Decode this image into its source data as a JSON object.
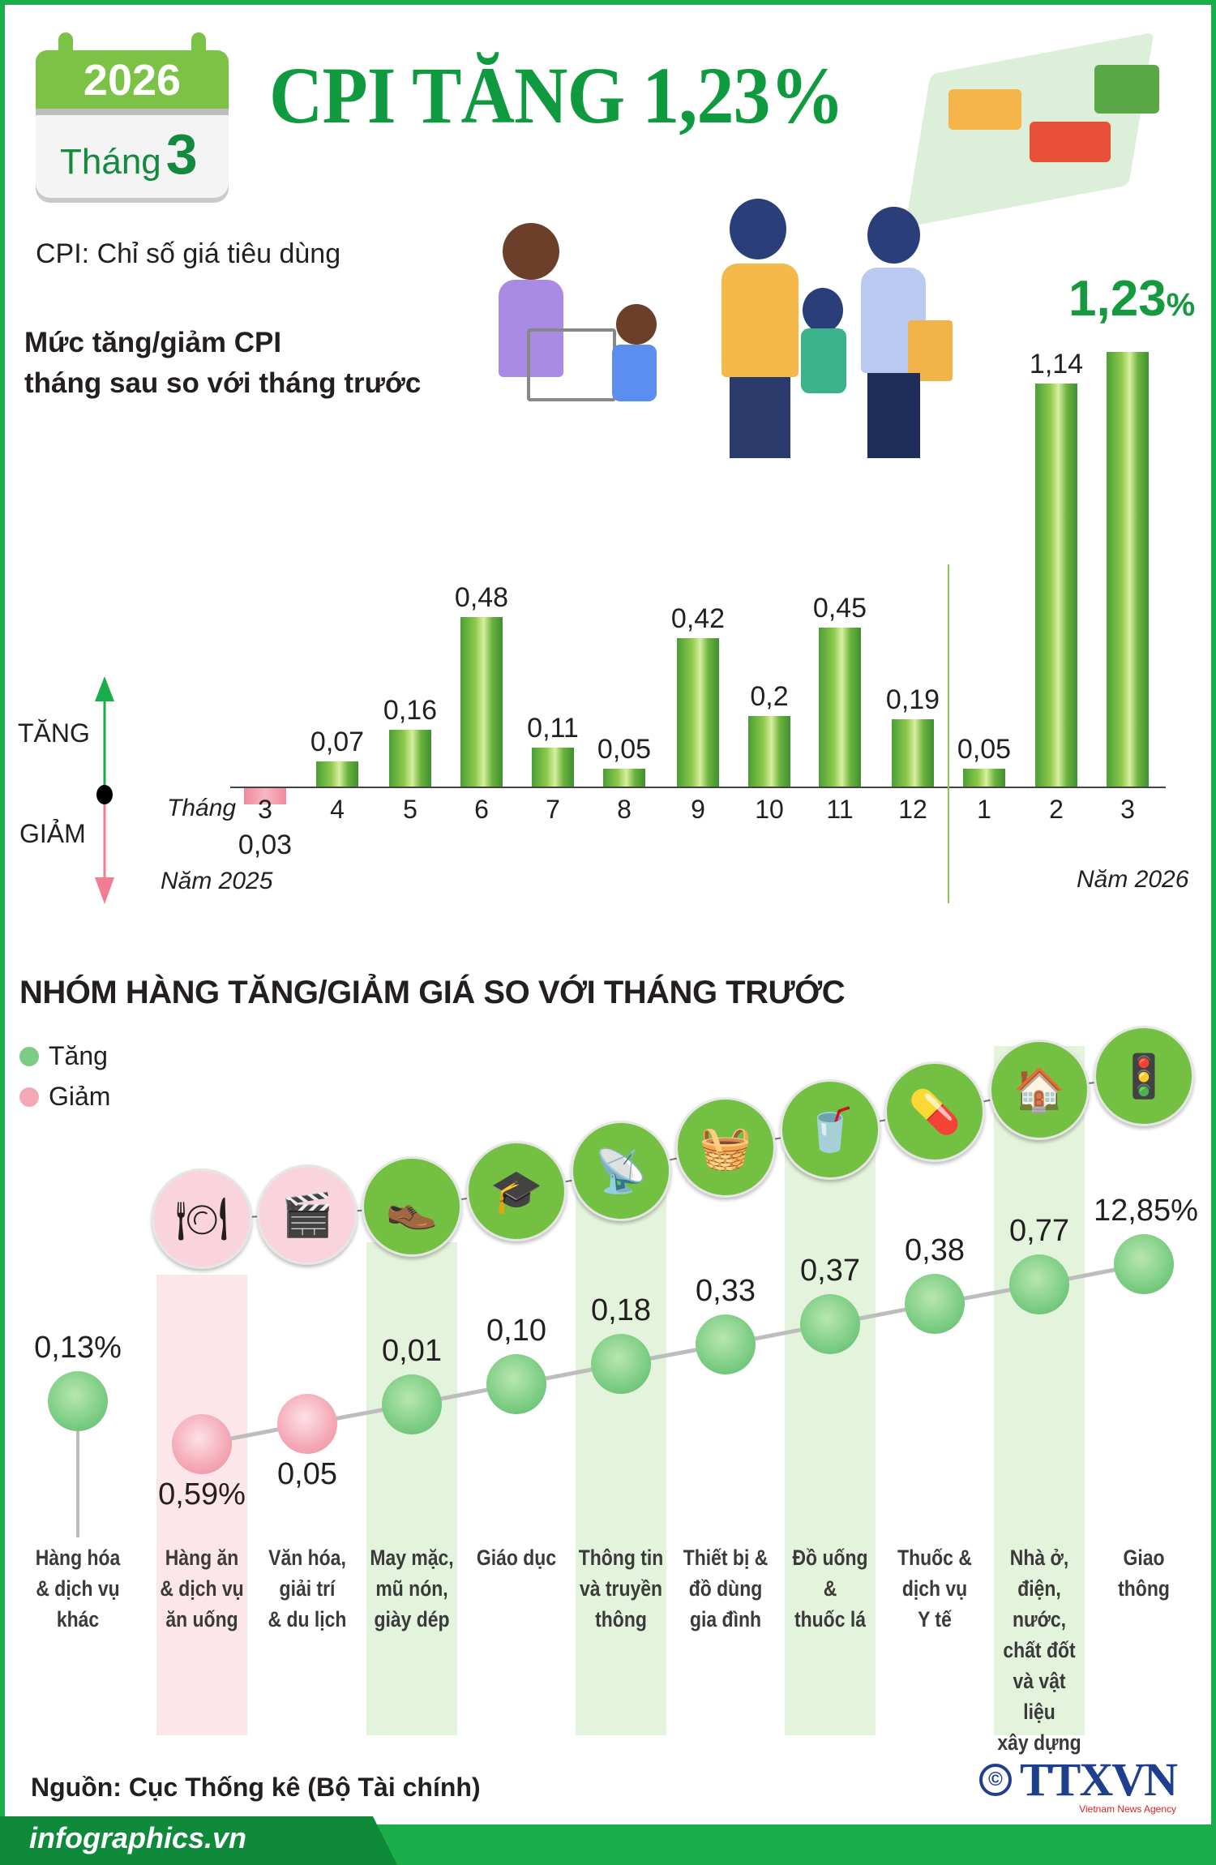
{
  "header": {
    "year": "2026",
    "month_label": "Tháng",
    "month_number": "3",
    "title": "CPI TĂNG 1,23%",
    "cpi_definition": "CPI: Chỉ số giá tiêu dùng"
  },
  "colors": {
    "brand_green": "#1aae4b",
    "title_green": "#0f9a3f",
    "increase": "#7ccd83",
    "decrease": "#f4a8b6",
    "ttxvn_blue": "#1e3f8f"
  },
  "chart_data": [
    {
      "type": "bar",
      "title": "Mức tăng/giảm CPI tháng sau so với tháng trước",
      "title_lines": [
        "Mức tăng/giảm CPI",
        "tháng sau so với tháng trước"
      ],
      "xlabel": "Tháng",
      "categories": [
        "3",
        "4",
        "5",
        "6",
        "7",
        "8",
        "9",
        "10",
        "11",
        "12",
        "1",
        "2",
        "3"
      ],
      "values": [
        -0.03,
        0.07,
        0.16,
        0.48,
        0.11,
        0.05,
        0.42,
        0.2,
        0.45,
        0.19,
        0.05,
        1.14,
        1.23
      ],
      "data_labels": [
        "0,03",
        "0,07",
        "0,16",
        "0,48",
        "0,11",
        "0,05",
        "0,42",
        "0,2",
        "0,45",
        "0,19",
        "0,05",
        "1,14",
        "1,23"
      ],
      "highlight_label": "1,23",
      "highlight_unit": "%",
      "year_labels": [
        "Năm 2025",
        "Năm 2026"
      ],
      "direction_labels": {
        "up": "TĂNG",
        "down": "GIẢM"
      },
      "ylim": [
        -0.03,
        1.23
      ],
      "grid": false
    },
    {
      "type": "scatter",
      "title": "NHÓM HÀNG TĂNG/GIẢM GIÁ SO VỚI THÁNG TRƯỚC",
      "legend": [
        {
          "label": "Tăng",
          "color": "#7ccd83"
        },
        {
          "label": "Giảm",
          "color": "#f4a8b6"
        }
      ],
      "categories": [
        "Hàng hóa\n& dịch vụ\nkhác",
        "Hàng ăn\n& dịch vụ\năn uống",
        "Văn hóa,\ngiải trí\n& du lịch",
        "May mặc,\nmũ nón,\ngiày dép",
        "Giáo dục",
        "Thông tin\nvà truyền\nthông",
        "Thiết bị &\nđồ dùng\ngia đình",
        "Đồ uống\n&\nthuốc lá",
        "Thuốc &\ndịch vụ\nY tế",
        "Nhà ở,\nđiện,\nnước,\nchất đốt\nvà vật liệu\nxây dựng",
        "Giao\nthông"
      ],
      "values": [
        0.13,
        -0.59,
        -0.05,
        0.01,
        0.1,
        0.18,
        0.33,
        0.37,
        0.38,
        0.77,
        12.85
      ],
      "data_labels": [
        "0,13%",
        "0,59%",
        "0,05",
        "0,01",
        "0,10",
        "0,18",
        "0,33",
        "0,37",
        "0,38",
        "0,77",
        "12,85%"
      ],
      "direction": [
        "up",
        "down",
        "down",
        "up",
        "up",
        "up",
        "up",
        "up",
        "up",
        "up",
        "up"
      ],
      "icons": [
        "",
        "food-plate-icon",
        "cinema-clapper-icon",
        "clothes-shoes-icon",
        "graduation-cap-icon",
        "radio-tower-icon",
        "washing-machine-icon",
        "drink-cigarette-icon",
        "pills-icon",
        "house-water-electric-icon",
        "traffic-light-icon"
      ]
    }
  ],
  "footer": {
    "source": "Nguồn: Cục Thống kê (Bộ Tài chính)",
    "site": "infographics.vn",
    "copyright_symbol": "©",
    "agency_logo": "TTXVN",
    "agency_tagline": "Vietnam News Agency"
  }
}
